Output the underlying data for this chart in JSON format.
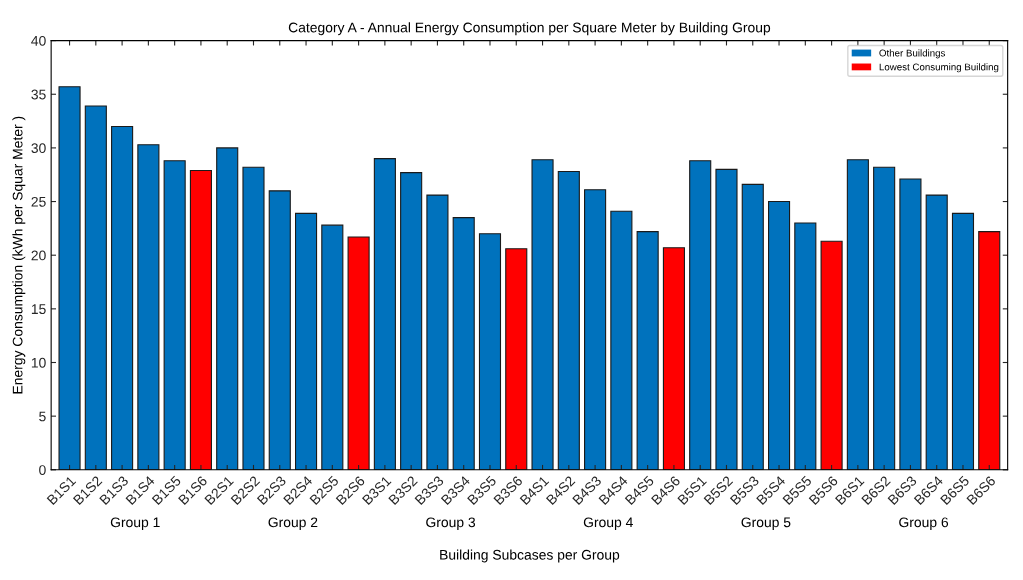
{
  "chart_data": {
    "type": "bar",
    "title": "Category A - Annual Energy Consumption per Square Meter by Building Group",
    "xlabel": "Building Subcases per Group",
    "ylabel": "Energy Consumption (kWh per Squar Meter )",
    "categories": [
      "B1S1",
      "B1S2",
      "B1S3",
      "B1S4",
      "B1S5",
      "B1S6",
      "B2S1",
      "B2S2",
      "B2S3",
      "B2S4",
      "B2S5",
      "B2S6",
      "B3S1",
      "B3S2",
      "B3S3",
      "B3S4",
      "B3S5",
      "B3S6",
      "B4S1",
      "B4S2",
      "B4S3",
      "B4S4",
      "B4S5",
      "B4S6",
      "B5S1",
      "B5S2",
      "B5S3",
      "B5S4",
      "B5S5",
      "B5S6",
      "B6S1",
      "B6S2",
      "B6S3",
      "B6S4",
      "B6S5",
      "B6S6"
    ],
    "series": [
      {
        "name": "Other Buildings",
        "color": "#0072bd",
        "values": [
          35.7,
          33.9,
          32.0,
          30.3,
          28.8,
          null,
          30.0,
          28.2,
          26.0,
          23.9,
          22.8,
          null,
          29.0,
          27.7,
          25.6,
          23.5,
          22.0,
          null,
          28.9,
          27.8,
          26.1,
          24.1,
          22.2,
          null,
          28.8,
          28.0,
          26.6,
          25.0,
          23.0,
          null,
          28.9,
          28.2,
          27.1,
          25.6,
          23.9,
          null
        ]
      },
      {
        "name": "Lowest Consuming Building",
        "color": "#ff0000",
        "values": [
          null,
          null,
          null,
          null,
          null,
          27.9,
          null,
          null,
          null,
          null,
          null,
          21.7,
          null,
          null,
          null,
          null,
          null,
          20.6,
          null,
          null,
          null,
          null,
          null,
          20.7,
          null,
          null,
          null,
          null,
          null,
          21.3,
          null,
          null,
          null,
          null,
          null,
          22.2
        ]
      }
    ],
    "annotations": [
      "Group 1",
      "Group 2",
      "Group 3",
      "Group 4",
      "Group 5",
      "Group 6"
    ],
    "ylim": [
      0,
      40
    ],
    "yticks": [
      0,
      5,
      10,
      15,
      20,
      25,
      30,
      35,
      40
    ],
    "grid": false,
    "legend": "top right"
  }
}
